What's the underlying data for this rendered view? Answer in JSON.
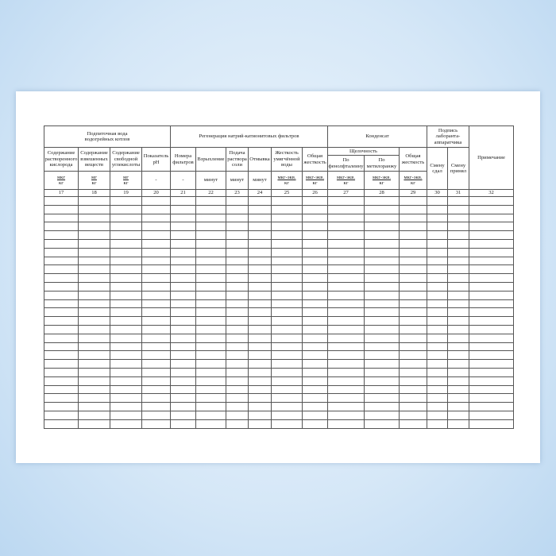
{
  "groups": {
    "feed_water": "Подпиточная вода водогрейных котлов",
    "regeneration": "Регенерация натрий-катионитовых фильтров",
    "condensate": "Конденсат",
    "signature": "Подпись лаборанта-аппаратчика",
    "note": "Примечание",
    "alkalinity": "Щелочность"
  },
  "columns": [
    {
      "label": "Содержание растворенного кислорода",
      "unit_num": "мкг",
      "unit_den": "кг",
      "number": "17"
    },
    {
      "label": "Содержание взвешенных веществ",
      "unit_num": "мг",
      "unit_den": "кг",
      "number": "18"
    },
    {
      "label": "Содержание свободной углекислоты",
      "unit_num": "мг",
      "unit_den": "кг",
      "number": "19"
    },
    {
      "label": "Показатель pH",
      "unit": "-",
      "number": "20"
    },
    {
      "label": "Номера фильтров",
      "unit": "-",
      "number": "21"
    },
    {
      "label": "Взрыхление",
      "unit": "минут",
      "number": "22"
    },
    {
      "label": "Подача раствора соли",
      "unit": "минут",
      "number": "23"
    },
    {
      "label": "Отмывка",
      "unit": "минут",
      "number": "24"
    },
    {
      "label": "Жесткость умягчённой воды",
      "unit_num": "мкг-экв.",
      "unit_den": "кг",
      "number": "25"
    },
    {
      "label": "Общая жесткость",
      "unit_num": "мкг-экв.",
      "unit_den": "кг",
      "number": "26"
    },
    {
      "label": "По фенолфталеину",
      "unit_num": "мкг-экв.",
      "unit_den": "кг",
      "number": "27"
    },
    {
      "label": "По метилоранжу",
      "unit_num": "мкг-экв.",
      "unit_den": "кг",
      "number": "28"
    },
    {
      "label": "Общая жесткость",
      "unit_num": "мкг-экв.",
      "unit_den": "кг",
      "number": "29"
    },
    {
      "label": "Смену сдал",
      "number": "30"
    },
    {
      "label": "Смену принял",
      "number": "31"
    },
    {
      "label": "Примечание",
      "number": "32"
    }
  ]
}
